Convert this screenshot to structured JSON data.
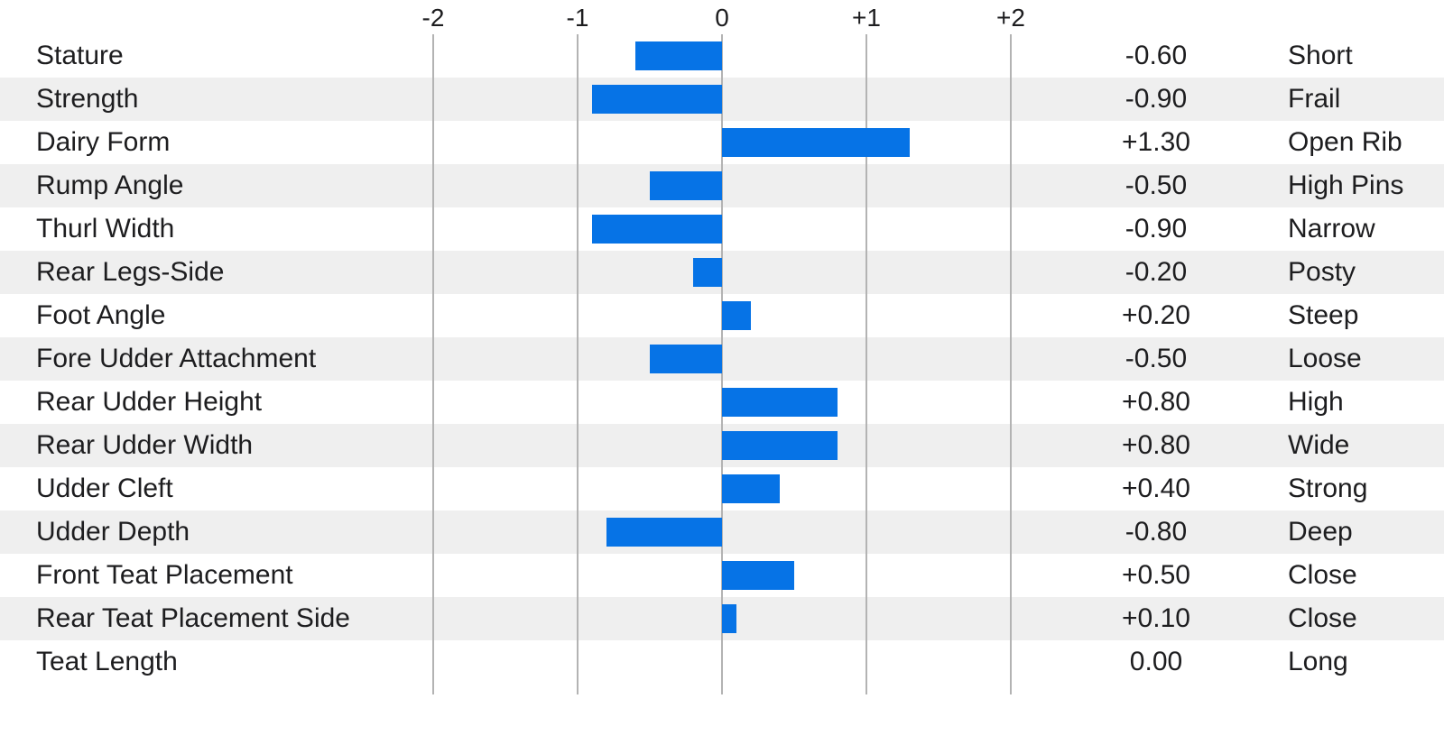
{
  "chart_data": {
    "type": "bar",
    "orientation": "horizontal",
    "title": "",
    "categories": [
      "Stature",
      "Strength",
      "Dairy Form",
      "Rump Angle",
      "Thurl Width",
      "Rear Legs-Side",
      "Foot Angle",
      "Fore Udder Attachment",
      "Rear Udder Height",
      "Rear Udder Width",
      "Udder Cleft",
      "Udder Depth",
      "Front Teat Placement",
      "Rear Teat Placement Side",
      "Teat Length"
    ],
    "values": [
      -0.6,
      -0.9,
      1.3,
      -0.5,
      -0.9,
      -0.2,
      0.2,
      -0.5,
      0.8,
      0.8,
      0.4,
      -0.8,
      0.5,
      0.1,
      0.0
    ],
    "value_labels": [
      "-0.60",
      "-0.90",
      "+1.30",
      "-0.50",
      "-0.90",
      "-0.20",
      "+0.20",
      "-0.50",
      "+0.80",
      "+0.80",
      "+0.40",
      "-0.80",
      "+0.50",
      "+0.10",
      "0.00"
    ],
    "descriptors": [
      "Short",
      "Frail",
      "Open Rib",
      "High Pins",
      "Narrow",
      "Posty",
      "Steep",
      "Loose",
      "High",
      "Wide",
      "Strong",
      "Deep",
      "Close",
      "Close",
      "Long"
    ],
    "axis": {
      "tick_labels": [
        "-2",
        "-1",
        "0",
        "+1",
        "+2"
      ],
      "tick_values": [
        -2,
        -1,
        0,
        1,
        2
      ],
      "min": -2,
      "max": 2,
      "grid": true,
      "position": "top"
    },
    "legend": null,
    "colors": {
      "bar": "#0673e6",
      "stripe": "#efefef",
      "gridline": "#b3b3b3",
      "text": "#1d1d1f",
      "background": "#ffffff"
    }
  }
}
